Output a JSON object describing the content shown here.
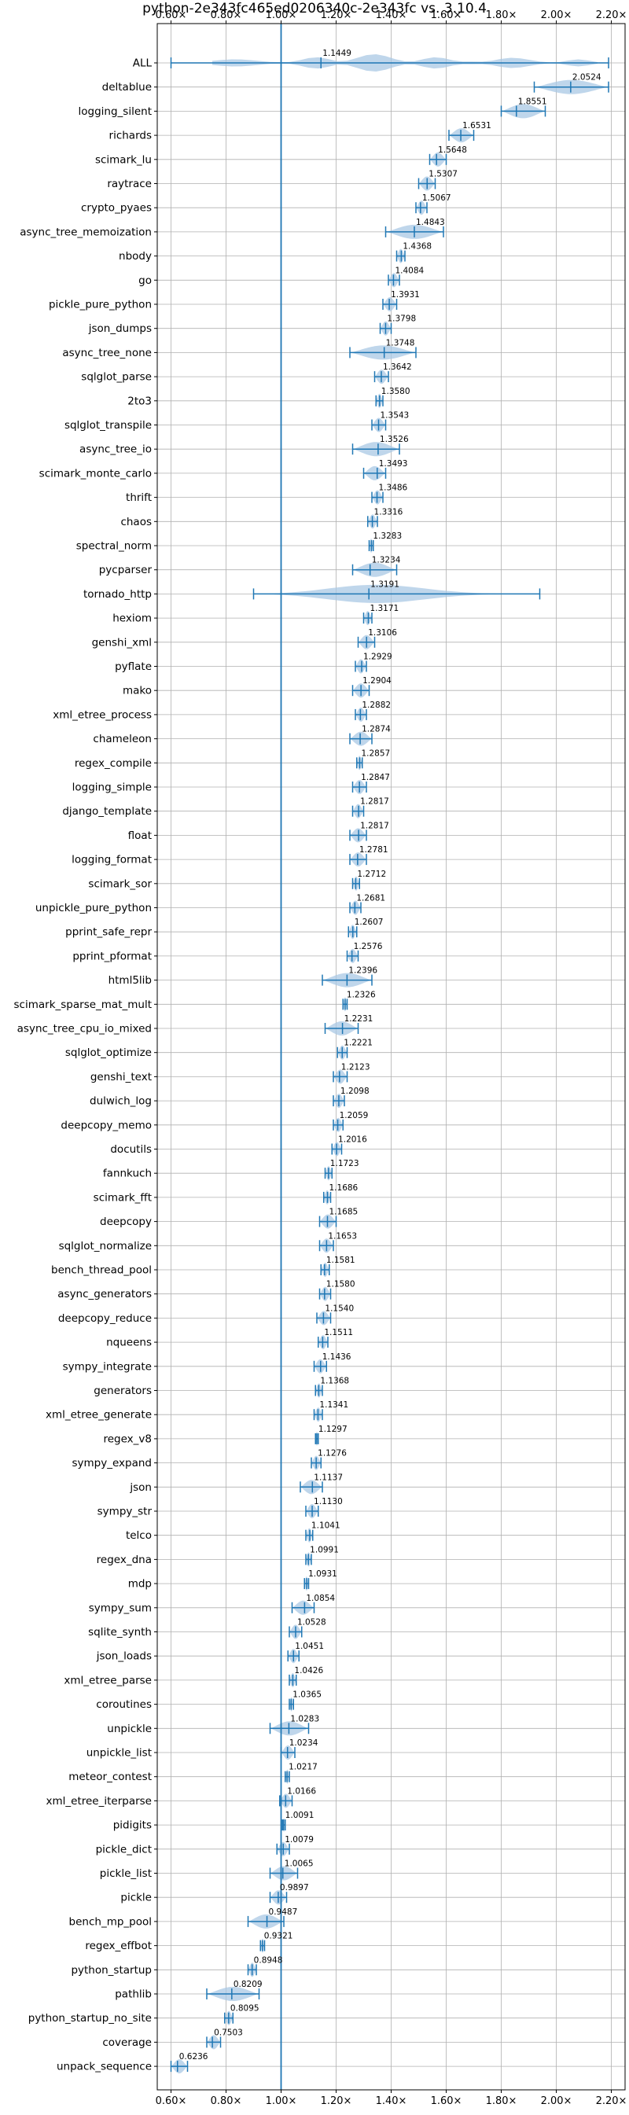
{
  "chart_data": {
    "type": "violin",
    "title": "python-2e343fc465ed0206340c-2e343fc vs. 3.10.4",
    "xlim": [
      0.55,
      2.25
    ],
    "x_ticks": [
      0.6,
      0.8,
      1.0,
      1.2,
      1.4,
      1.6,
      1.8,
      2.0,
      2.2
    ],
    "x_tick_labels": [
      "0.60×",
      "0.80×",
      "1.00×",
      "1.20×",
      "1.40×",
      "1.60×",
      "1.80×",
      "2.00×",
      "2.20×"
    ],
    "reference_line": 1.0,
    "grid": true,
    "colors": {
      "violin": "#a9c8e4",
      "whisker": "#1f77b4",
      "reference": "#1f77b4"
    },
    "benchmarks": [
      {
        "name": "ALL",
        "value": 1.1449,
        "min": 0.6,
        "max": 2.19,
        "violin": "multi"
      },
      {
        "name": "deltablue",
        "value": 2.0524,
        "min": 1.92,
        "max": 2.19
      },
      {
        "name": "logging_silent",
        "value": 1.8551,
        "min": 1.8,
        "max": 1.96
      },
      {
        "name": "richards",
        "value": 1.6531,
        "min": 1.61,
        "max": 1.7
      },
      {
        "name": "scimark_lu",
        "value": 1.5648,
        "min": 1.54,
        "max": 1.6
      },
      {
        "name": "raytrace",
        "value": 1.5307,
        "min": 1.5,
        "max": 1.56
      },
      {
        "name": "crypto_pyaes",
        "value": 1.5067,
        "min": 1.49,
        "max": 1.53
      },
      {
        "name": "async_tree_memoization",
        "value": 1.4843,
        "min": 1.38,
        "max": 1.59
      },
      {
        "name": "nbody",
        "value": 1.4368,
        "min": 1.42,
        "max": 1.45
      },
      {
        "name": "go",
        "value": 1.4084,
        "min": 1.39,
        "max": 1.43
      },
      {
        "name": "pickle_pure_python",
        "value": 1.3931,
        "min": 1.37,
        "max": 1.42
      },
      {
        "name": "json_dumps",
        "value": 1.3798,
        "min": 1.36,
        "max": 1.4
      },
      {
        "name": "async_tree_none",
        "value": 1.3748,
        "min": 1.25,
        "max": 1.49
      },
      {
        "name": "sqlglot_parse",
        "value": 1.3642,
        "min": 1.34,
        "max": 1.39
      },
      {
        "name": "2to3",
        "value": 1.358,
        "min": 1.345,
        "max": 1.37
      },
      {
        "name": "sqlglot_transpile",
        "value": 1.3543,
        "min": 1.33,
        "max": 1.38
      },
      {
        "name": "async_tree_io",
        "value": 1.3526,
        "min": 1.26,
        "max": 1.43
      },
      {
        "name": "scimark_monte_carlo",
        "value": 1.3493,
        "min": 1.3,
        "max": 1.38
      },
      {
        "name": "thrift",
        "value": 1.3486,
        "min": 1.33,
        "max": 1.37
      },
      {
        "name": "chaos",
        "value": 1.3316,
        "min": 1.315,
        "max": 1.35
      },
      {
        "name": "spectral_norm",
        "value": 1.3283,
        "min": 1.32,
        "max": 1.335
      },
      {
        "name": "pycparser",
        "value": 1.3234,
        "min": 1.26,
        "max": 1.42
      },
      {
        "name": "tornado_http",
        "value": 1.3191,
        "min": 0.9,
        "max": 1.94,
        "violin": "wide"
      },
      {
        "name": "hexiom",
        "value": 1.3171,
        "min": 1.3,
        "max": 1.33
      },
      {
        "name": "genshi_xml",
        "value": 1.3106,
        "min": 1.28,
        "max": 1.34
      },
      {
        "name": "pyflate",
        "value": 1.2929,
        "min": 1.27,
        "max": 1.31
      },
      {
        "name": "mako",
        "value": 1.2904,
        "min": 1.26,
        "max": 1.32
      },
      {
        "name": "xml_etree_process",
        "value": 1.2882,
        "min": 1.27,
        "max": 1.31
      },
      {
        "name": "chameleon",
        "value": 1.2874,
        "min": 1.25,
        "max": 1.33
      },
      {
        "name": "regex_compile",
        "value": 1.2857,
        "min": 1.275,
        "max": 1.295
      },
      {
        "name": "logging_simple",
        "value": 1.2847,
        "min": 1.26,
        "max": 1.31
      },
      {
        "name": "django_template",
        "value": 1.2817,
        "min": 1.26,
        "max": 1.3
      },
      {
        "name": "float",
        "value": 1.2817,
        "min": 1.25,
        "max": 1.31
      },
      {
        "name": "logging_format",
        "value": 1.2781,
        "min": 1.25,
        "max": 1.31
      },
      {
        "name": "scimark_sor",
        "value": 1.2712,
        "min": 1.26,
        "max": 1.285
      },
      {
        "name": "unpickle_pure_python",
        "value": 1.2681,
        "min": 1.25,
        "max": 1.29
      },
      {
        "name": "pprint_safe_repr",
        "value": 1.2607,
        "min": 1.245,
        "max": 1.275
      },
      {
        "name": "pprint_pformat",
        "value": 1.2576,
        "min": 1.24,
        "max": 1.28
      },
      {
        "name": "html5lib",
        "value": 1.2396,
        "min": 1.15,
        "max": 1.33
      },
      {
        "name": "scimark_sparse_mat_mult",
        "value": 1.2326,
        "min": 1.225,
        "max": 1.24
      },
      {
        "name": "async_tree_cpu_io_mixed",
        "value": 1.2231,
        "min": 1.16,
        "max": 1.28
      },
      {
        "name": "sqlglot_optimize",
        "value": 1.2221,
        "min": 1.205,
        "max": 1.24
      },
      {
        "name": "genshi_text",
        "value": 1.2123,
        "min": 1.19,
        "max": 1.24
      },
      {
        "name": "dulwich_log",
        "value": 1.2098,
        "min": 1.19,
        "max": 1.23
      },
      {
        "name": "deepcopy_memo",
        "value": 1.2059,
        "min": 1.19,
        "max": 1.225
      },
      {
        "name": "docutils",
        "value": 1.2016,
        "min": 1.185,
        "max": 1.22
      },
      {
        "name": "fannkuch",
        "value": 1.1723,
        "min": 1.16,
        "max": 1.185
      },
      {
        "name": "scimark_fft",
        "value": 1.1686,
        "min": 1.155,
        "max": 1.18
      },
      {
        "name": "deepcopy",
        "value": 1.1685,
        "min": 1.14,
        "max": 1.2
      },
      {
        "name": "sqlglot_normalize",
        "value": 1.1653,
        "min": 1.14,
        "max": 1.19
      },
      {
        "name": "bench_thread_pool",
        "value": 1.1581,
        "min": 1.145,
        "max": 1.175
      },
      {
        "name": "async_generators",
        "value": 1.158,
        "min": 1.14,
        "max": 1.18
      },
      {
        "name": "deepcopy_reduce",
        "value": 1.154,
        "min": 1.13,
        "max": 1.18
      },
      {
        "name": "nqueens",
        "value": 1.1511,
        "min": 1.135,
        "max": 1.17
      },
      {
        "name": "sympy_integrate",
        "value": 1.1436,
        "min": 1.12,
        "max": 1.165
      },
      {
        "name": "generators",
        "value": 1.1368,
        "min": 1.125,
        "max": 1.15
      },
      {
        "name": "xml_etree_generate",
        "value": 1.1341,
        "min": 1.12,
        "max": 1.15
      },
      {
        "name": "regex_v8",
        "value": 1.1297,
        "min": 1.125,
        "max": 1.135
      },
      {
        "name": "sympy_expand",
        "value": 1.1276,
        "min": 1.11,
        "max": 1.145
      },
      {
        "name": "json",
        "value": 1.1137,
        "min": 1.07,
        "max": 1.15
      },
      {
        "name": "sympy_str",
        "value": 1.113,
        "min": 1.09,
        "max": 1.135
      },
      {
        "name": "telco",
        "value": 1.1041,
        "min": 1.09,
        "max": 1.115
      },
      {
        "name": "regex_dna",
        "value": 1.0991,
        "min": 1.09,
        "max": 1.11
      },
      {
        "name": "mdp",
        "value": 1.0931,
        "min": 1.085,
        "max": 1.1
      },
      {
        "name": "sympy_sum",
        "value": 1.0854,
        "min": 1.04,
        "max": 1.12
      },
      {
        "name": "sqlite_synth",
        "value": 1.0528,
        "min": 1.03,
        "max": 1.075
      },
      {
        "name": "json_loads",
        "value": 1.0451,
        "min": 1.025,
        "max": 1.065
      },
      {
        "name": "xml_etree_parse",
        "value": 1.0426,
        "min": 1.03,
        "max": 1.055
      },
      {
        "name": "coroutines",
        "value": 1.0365,
        "min": 1.03,
        "max": 1.045
      },
      {
        "name": "unpickle",
        "value": 1.0283,
        "min": 0.96,
        "max": 1.1
      },
      {
        "name": "unpickle_list",
        "value": 1.0234,
        "min": 1.0,
        "max": 1.05
      },
      {
        "name": "meteor_contest",
        "value": 1.0217,
        "min": 1.015,
        "max": 1.03
      },
      {
        "name": "xml_etree_iterparse",
        "value": 1.0166,
        "min": 0.995,
        "max": 1.04
      },
      {
        "name": "pidigits",
        "value": 1.0091,
        "min": 1.005,
        "max": 1.015
      },
      {
        "name": "pickle_dict",
        "value": 1.0079,
        "min": 0.985,
        "max": 1.03
      },
      {
        "name": "pickle_list",
        "value": 1.0065,
        "min": 0.96,
        "max": 1.06
      },
      {
        "name": "pickle",
        "value": 0.9897,
        "min": 0.96,
        "max": 1.02
      },
      {
        "name": "bench_mp_pool",
        "value": 0.9487,
        "min": 0.88,
        "max": 1.01
      },
      {
        "name": "regex_effbot",
        "value": 0.9321,
        "min": 0.925,
        "max": 0.94
      },
      {
        "name": "python_startup",
        "value": 0.8948,
        "min": 0.88,
        "max": 0.91
      },
      {
        "name": "pathlib",
        "value": 0.8209,
        "min": 0.73,
        "max": 0.92
      },
      {
        "name": "python_startup_no_site",
        "value": 0.8095,
        "min": 0.795,
        "max": 0.825
      },
      {
        "name": "coverage",
        "value": 0.7503,
        "min": 0.73,
        "max": 0.78
      },
      {
        "name": "unpack_sequence",
        "value": 0.6236,
        "min": 0.6,
        "max": 0.66
      }
    ]
  }
}
